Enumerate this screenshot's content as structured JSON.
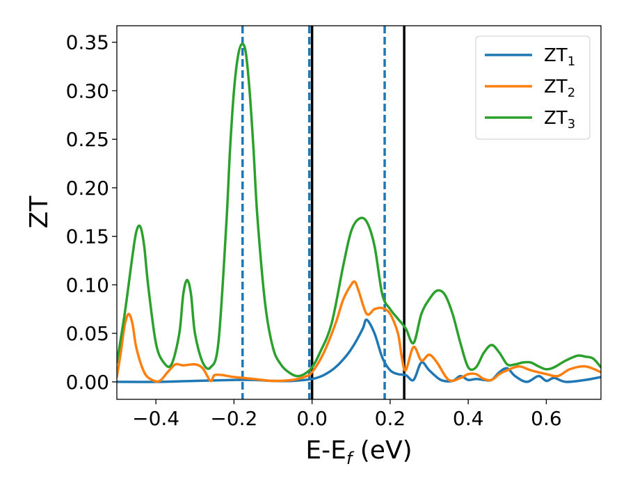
{
  "chart_data": {
    "type": "line",
    "xlabel": {
      "main": "E-E",
      "sub": "f",
      "unit": " (eV)"
    },
    "ylabel": "ZT",
    "xlim": [
      -0.5,
      0.74
    ],
    "ylim": [
      -0.018,
      0.367
    ],
    "xticks": [
      -0.4,
      -0.2,
      0.0,
      0.2,
      0.4,
      0.6
    ],
    "xtick_labels": [
      "−0.4",
      "−0.2",
      "0.0",
      "0.2",
      "0.4",
      "0.6"
    ],
    "yticks": [
      0.0,
      0.05,
      0.1,
      0.15,
      0.2,
      0.25,
      0.3,
      0.35
    ],
    "ytick_labels": [
      "0.00",
      "0.05",
      "0.10",
      "0.15",
      "0.20",
      "0.25",
      "0.30",
      "0.35"
    ],
    "legend_position": "top-right",
    "series": [
      {
        "name": "ZT",
        "sub": "1",
        "color": "#1f77b4",
        "x": [
          -0.5,
          -0.4,
          -0.3,
          -0.2,
          -0.15,
          -0.1,
          -0.05,
          0.0,
          0.03,
          0.06,
          0.09,
          0.11,
          0.13,
          0.14,
          0.16,
          0.18,
          0.2,
          0.22,
          0.24,
          0.26,
          0.28,
          0.3,
          0.33,
          0.36,
          0.38,
          0.4,
          0.42,
          0.44,
          0.46,
          0.48,
          0.5,
          0.52,
          0.55,
          0.58,
          0.6,
          0.62,
          0.65,
          0.7,
          0.74
        ],
        "y": [
          0.0,
          0.0,
          0.001,
          0.002,
          0.002,
          0.001,
          0.001,
          0.003,
          0.007,
          0.015,
          0.028,
          0.04,
          0.055,
          0.064,
          0.05,
          0.025,
          0.012,
          0.008,
          0.007,
          0.002,
          0.02,
          0.012,
          0.002,
          0.001,
          0.006,
          0.002,
          0.003,
          0.002,
          0.002,
          0.01,
          0.014,
          0.006,
          0.0,
          0.006,
          0.001,
          0.004,
          0.0,
          0.002,
          0.005
        ]
      },
      {
        "name": "ZT",
        "sub": "2",
        "color": "#ff7f0e",
        "x": [
          -0.5,
          -0.49,
          -0.48,
          -0.47,
          -0.46,
          -0.45,
          -0.43,
          -0.41,
          -0.39,
          -0.37,
          -0.35,
          -0.33,
          -0.3,
          -0.28,
          -0.26,
          -0.25,
          -0.23,
          -0.2,
          -0.15,
          -0.1,
          -0.05,
          -0.02,
          0.0,
          0.03,
          0.06,
          0.08,
          0.1,
          0.11,
          0.12,
          0.14,
          0.16,
          0.18,
          0.2,
          0.22,
          0.23,
          0.24,
          0.26,
          0.28,
          0.3,
          0.32,
          0.35,
          0.38,
          0.4,
          0.42,
          0.44,
          0.46,
          0.48,
          0.5,
          0.53,
          0.56,
          0.6,
          0.63,
          0.66,
          0.7,
          0.74
        ],
        "y": [
          0.005,
          0.03,
          0.058,
          0.07,
          0.06,
          0.035,
          0.01,
          0.002,
          0.001,
          0.01,
          0.018,
          0.017,
          0.018,
          0.014,
          0.001,
          0.007,
          0.007,
          0.005,
          0.003,
          0.001,
          0.002,
          0.005,
          0.01,
          0.03,
          0.06,
          0.085,
          0.1,
          0.103,
          0.093,
          0.07,
          0.075,
          0.076,
          0.07,
          0.05,
          0.025,
          0.012,
          0.036,
          0.022,
          0.028,
          0.02,
          0.002,
          0.004,
          0.008,
          0.008,
          0.003,
          0.002,
          0.008,
          0.012,
          0.016,
          0.012,
          0.008,
          0.006,
          0.013,
          0.016,
          0.01
        ]
      },
      {
        "name": "ZT",
        "sub": "3",
        "color": "#2ca02c",
        "x": [
          -0.5,
          -0.48,
          -0.46,
          -0.45,
          -0.44,
          -0.43,
          -0.42,
          -0.4,
          -0.38,
          -0.36,
          -0.34,
          -0.33,
          -0.32,
          -0.31,
          -0.3,
          -0.28,
          -0.26,
          -0.24,
          -0.22,
          -0.21,
          -0.2,
          -0.19,
          -0.18,
          -0.17,
          -0.16,
          -0.15,
          -0.14,
          -0.12,
          -0.1,
          -0.08,
          -0.06,
          -0.04,
          -0.02,
          0.0,
          0.02,
          0.05,
          0.08,
          0.1,
          0.12,
          0.14,
          0.16,
          0.18,
          0.2,
          0.22,
          0.24,
          0.26,
          0.28,
          0.3,
          0.32,
          0.34,
          0.36,
          0.38,
          0.4,
          0.42,
          0.44,
          0.46,
          0.48,
          0.5,
          0.52,
          0.54,
          0.56,
          0.58,
          0.6,
          0.62,
          0.65,
          0.68,
          0.7,
          0.72,
          0.74
        ],
        "y": [
          0.02,
          0.07,
          0.13,
          0.155,
          0.16,
          0.14,
          0.1,
          0.04,
          0.02,
          0.018,
          0.05,
          0.09,
          0.105,
          0.09,
          0.05,
          0.02,
          0.015,
          0.04,
          0.16,
          0.24,
          0.3,
          0.335,
          0.348,
          0.34,
          0.3,
          0.24,
          0.17,
          0.08,
          0.035,
          0.018,
          0.01,
          0.006,
          0.008,
          0.015,
          0.03,
          0.06,
          0.12,
          0.155,
          0.168,
          0.165,
          0.14,
          0.09,
          0.075,
          0.065,
          0.055,
          0.04,
          0.07,
          0.085,
          0.094,
          0.09,
          0.07,
          0.04,
          0.015,
          0.015,
          0.03,
          0.038,
          0.03,
          0.018,
          0.018,
          0.02,
          0.02,
          0.016,
          0.013,
          0.015,
          0.022,
          0.027,
          0.026,
          0.024,
          0.015
        ]
      }
    ],
    "vlines": [
      {
        "x": -0.178,
        "style": "dashed",
        "color": "#1f77b4"
      },
      {
        "x": -0.007,
        "style": "dashed",
        "color": "#1f77b4"
      },
      {
        "x": 0.0,
        "style": "solid",
        "color": "#000000"
      },
      {
        "x": 0.186,
        "style": "dashed",
        "color": "#1f77b4"
      },
      {
        "x": 0.236,
        "style": "solid",
        "color": "#000000"
      }
    ]
  }
}
